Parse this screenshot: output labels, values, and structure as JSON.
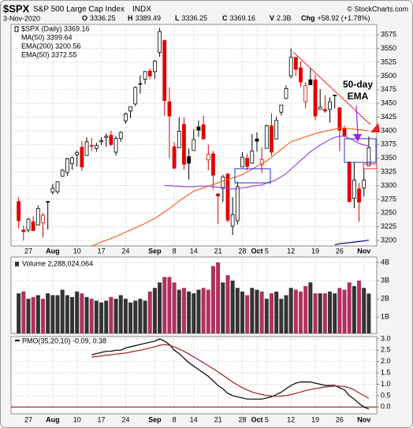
{
  "header": {
    "symbol": "$SPX",
    "name": "S&P 500 Large Cap Index",
    "exchange": "INDX",
    "credit": "© StockCharts.com",
    "date": "3-Nov-2020",
    "stats": [
      {
        "label": "O",
        "value": "3336.25"
      },
      {
        "label": "H",
        "value": "3389.49"
      },
      {
        "label": "L",
        "value": "3336.25"
      },
      {
        "label": "C",
        "value": "3369.16"
      },
      {
        "label": "V",
        "value": "2.3B"
      },
      {
        "label": "Chg",
        "value": "+58.92 (+1.78%)"
      }
    ]
  },
  "chart_data": {
    "type": "candlestick",
    "legend": "$SPX (Daily) 3369.16",
    "up_color": "#000000",
    "down_color": "#e00000",
    "x": [
      "2020-07-23",
      "2020-07-24",
      "2020-07-27",
      "2020-07-28",
      "2020-07-29",
      "2020-07-30",
      "2020-07-31",
      "2020-08-03",
      "2020-08-04",
      "2020-08-05",
      "2020-08-06",
      "2020-08-07",
      "2020-08-10",
      "2020-08-11",
      "2020-08-12",
      "2020-08-13",
      "2020-08-14",
      "2020-08-17",
      "2020-08-18",
      "2020-08-19",
      "2020-08-20",
      "2020-08-21",
      "2020-08-24",
      "2020-08-25",
      "2020-08-26",
      "2020-08-27",
      "2020-08-28",
      "2020-08-31",
      "2020-09-01",
      "2020-09-02",
      "2020-09-03",
      "2020-09-04",
      "2020-09-08",
      "2020-09-09",
      "2020-09-10",
      "2020-09-11",
      "2020-09-14",
      "2020-09-15",
      "2020-09-16",
      "2020-09-17",
      "2020-09-18",
      "2020-09-21",
      "2020-09-22",
      "2020-09-23",
      "2020-09-24",
      "2020-09-25",
      "2020-09-28",
      "2020-09-29",
      "2020-09-30",
      "2020-10-01",
      "2020-10-02",
      "2020-10-05",
      "2020-10-06",
      "2020-10-07",
      "2020-10-08",
      "2020-10-09",
      "2020-10-12",
      "2020-10-13",
      "2020-10-14",
      "2020-10-15",
      "2020-10-16",
      "2020-10-19",
      "2020-10-20",
      "2020-10-21",
      "2020-10-22",
      "2020-10-23",
      "2020-10-26",
      "2020-10-27",
      "2020-10-28",
      "2020-10-29",
      "2020-10-30",
      "2020-11-02",
      "2020-11-03"
    ],
    "xticks": [
      {
        "value": "2020-07-27",
        "label": "27"
      },
      {
        "value": "2020-08-03",
        "label": "Aug"
      },
      {
        "value": "2020-08-10",
        "label": "10"
      },
      {
        "value": "2020-08-17",
        "label": "17"
      },
      {
        "value": "2020-08-24",
        "label": "24"
      },
      {
        "value": "2020-09-01",
        "label": "Sep"
      },
      {
        "value": "2020-09-08",
        "label": "8"
      },
      {
        "value": "2020-09-14",
        "label": "14"
      },
      {
        "value": "2020-09-21",
        "label": "21"
      },
      {
        "value": "2020-09-28",
        "label": "28"
      },
      {
        "value": "2020-10-01",
        "label": "Oct"
      },
      {
        "value": "2020-10-05",
        "label": "5"
      },
      {
        "value": "2020-10-12",
        "label": "12"
      },
      {
        "value": "2020-10-19",
        "label": "19"
      },
      {
        "value": "2020-10-26",
        "label": "26"
      },
      {
        "value": "2020-11-02",
        "label": "Nov"
      }
    ],
    "open": [
      3271,
      3219,
      3219,
      3234,
      3228,
      3232,
      3270,
      3288,
      3289,
      3317,
      3324,
      3340,
      3356,
      3370,
      3355,
      3373,
      3368,
      3380,
      3388,
      3392,
      3361,
      3386,
      3418,
      3436,
      3449,
      3486,
      3494,
      3509,
      3508,
      3543,
      3565,
      3453,
      3371,
      3369,
      3412,
      3353,
      3364,
      3407,
      3411,
      3347,
      3358,
      3285,
      3295,
      3321,
      3226,
      3236,
      3334,
      3350,
      3341,
      3385,
      3338,
      3368,
      3409,
      3385,
      3434,
      3459,
      3500,
      3534,
      3515,
      3453,
      3493,
      3493,
      3439,
      3439,
      3439,
      3464,
      3442,
      3404,
      3343,
      3277,
      3294,
      3296,
      3336.25
    ],
    "high": [
      3279,
      3227,
      3241,
      3244,
      3264,
      3250,
      3272,
      3303,
      3307,
      3330,
      3351,
      3353,
      3364,
      3381,
      3388,
      3387,
      3378,
      3388,
      3395,
      3400,
      3390,
      3399,
      3433,
      3444,
      3481,
      3501,
      3509,
      3514,
      3529,
      3588,
      3565,
      3479,
      3379,
      3425,
      3425,
      3368,
      3403,
      3419,
      3428,
      3375,
      3363,
      3285,
      3320,
      3323,
      3279,
      3307,
      3361,
      3358,
      3394,
      3397,
      3370,
      3411,
      3432,
      3426,
      3447,
      3483,
      3550,
      3534,
      3527,
      3489,
      3515,
      3502,
      3476,
      3465,
      3461,
      3466,
      3442,
      3409,
      3343,
      3342,
      3305,
      3330,
      3389.49
    ],
    "low": [
      3222,
      3200,
      3215,
      3217,
      3228,
      3205,
      3220,
      3284,
      3285,
      3317,
      3318,
      3329,
      3335,
      3327,
      3355,
      3363,
      3362,
      3374,
      3371,
      3372,
      3355,
      3380,
      3413,
      3423,
      3445,
      3468,
      3485,
      3494,
      3495,
      3535,
      3427,
      3350,
      3329,
      3369,
      3329,
      3311,
      3364,
      3389,
      3384,
      3328,
      3293,
      3230,
      3270,
      3233,
      3210,
      3229,
      3334,
      3328,
      3340,
      3362,
      3323,
      3368,
      3354,
      3385,
      3428,
      3458,
      3496,
      3500,
      3480,
      3441,
      3483,
      3419,
      3439,
      3433,
      3415,
      3441,
      3363,
      3388,
      3268,
      3259,
      3234,
      3280,
      3336.25
    ],
    "close": [
      3236,
      3216,
      3239,
      3218,
      3258,
      3246,
      3271,
      3295,
      3307,
      3328,
      3349,
      3351,
      3360,
      3334,
      3380,
      3373,
      3373,
      3382,
      3390,
      3375,
      3386,
      3397,
      3431,
      3444,
      3479,
      3485,
      3508,
      3500,
      3527,
      3581,
      3455,
      3427,
      3332,
      3399,
      3339,
      3341,
      3384,
      3401,
      3385,
      3357,
      3319,
      3281,
      3316,
      3237,
      3247,
      3298,
      3352,
      3335,
      3363,
      3381,
      3348,
      3409,
      3361,
      3419,
      3447,
      3477,
      3534,
      3512,
      3489,
      3483,
      3484,
      3427,
      3443,
      3436,
      3453,
      3465,
      3401,
      3391,
      3271,
      3310,
      3270,
      3310,
      3369.16
    ],
    "ylim": [
      3190,
      3594
    ],
    "yticks": [
      3200,
      3225,
      3250,
      3275,
      3300,
      3325,
      3350,
      3375,
      3400,
      3425,
      3450,
      3475,
      3500,
      3525,
      3550,
      3575
    ],
    "grid": true,
    "series": [
      {
        "name": "MA(50)",
        "legend": "MA(50) 3399.64",
        "color": "#f26522",
        "values": [
          null,
          null,
          null,
          null,
          null,
          null,
          null,
          null,
          null,
          null,
          null,
          null,
          null,
          null,
          null,
          3190,
          3193,
          3197,
          3200,
          3204,
          3207,
          3211,
          3215,
          3219,
          3223,
          3227,
          3231,
          3236,
          3240,
          3246,
          3252,
          3258,
          3265,
          3272,
          3278,
          3284,
          3290,
          3293,
          3296,
          3299,
          3302,
          3305,
          3308,
          3311,
          3314,
          3317,
          3320,
          3325,
          3330,
          3335,
          3340,
          3345,
          3352,
          3359,
          3366,
          3373,
          3380,
          3383,
          3386,
          3389,
          3392,
          3395,
          3397,
          3399,
          3401,
          3403,
          3405,
          3405,
          3404,
          3403,
          3402,
          3401,
          3399.64
        ]
      },
      {
        "name": "EMA(200)",
        "legend": "EMA(200) 3200.56",
        "color": "#000080",
        "values": [
          null,
          null,
          null,
          null,
          null,
          null,
          null,
          null,
          null,
          null,
          null,
          null,
          null,
          null,
          null,
          null,
          null,
          null,
          null,
          null,
          null,
          null,
          null,
          null,
          null,
          null,
          null,
          null,
          null,
          null,
          null,
          null,
          null,
          null,
          null,
          null,
          null,
          null,
          null,
          null,
          null,
          null,
          null,
          null,
          null,
          null,
          null,
          null,
          null,
          null,
          null,
          null,
          null,
          null,
          null,
          null,
          null,
          null,
          null,
          null,
          null,
          null,
          null,
          null,
          null,
          3192,
          3194,
          3195,
          3196,
          3197,
          3198,
          3199,
          3200.56
        ]
      },
      {
        "name": "EMA(50)",
        "legend": "EMA(50) 3372.55",
        "color": "#9b45e0",
        "values": [
          null,
          null,
          null,
          null,
          null,
          null,
          null,
          null,
          null,
          null,
          null,
          null,
          null,
          null,
          null,
          null,
          null,
          null,
          null,
          null,
          null,
          null,
          null,
          null,
          null,
          null,
          null,
          null,
          null,
          null,
          3300,
          3300,
          3299,
          3299,
          3298,
          3298,
          3298,
          3299,
          3299,
          3299,
          3298,
          3297,
          3297,
          3295,
          3294,
          3294,
          3296,
          3297,
          3299,
          3300,
          3301,
          3305,
          3307,
          3311,
          3316,
          3322,
          3330,
          3338,
          3346,
          3354,
          3362,
          3368,
          3374,
          3379,
          3384,
          3388,
          3390,
          3390,
          3386,
          3382,
          3377,
          3374,
          3372.55
        ]
      }
    ],
    "annotation": {
      "lines": [
        "50-day",
        "EMA"
      ],
      "color": "#a020f0"
    },
    "volume": {
      "type": "bar",
      "legend": "Volume 2,288,024,064",
      "up_color": "#333333",
      "down_color": "#b0305f",
      "values": [
        2.3,
        2.4,
        2.0,
        2.1,
        2.2,
        2.0,
        2.3,
        2.2,
        2.2,
        2.5,
        2.2,
        2.1,
        2.4,
        2.3,
        2.1,
        2.0,
        1.9,
        1.8,
        1.9,
        2.1,
        2.0,
        2.2,
        2.0,
        1.8,
        1.9,
        2.0,
        1.9,
        2.4,
        2.6,
        2.9,
        3.2,
        3.2,
        2.9,
        2.5,
        2.6,
        2.4,
        2.3,
        2.5,
        2.6,
        2.5,
        3.8,
        4.0,
        2.9,
        3.3,
        3.0,
        2.6,
        2.4,
        2.2,
        2.6,
        2.5,
        2.4,
        2.0,
        2.3,
        2.4,
        2.0,
        2.2,
        2.6,
        2.5,
        2.4,
        2.7,
        2.9,
        2.3,
        2.3,
        2.3,
        2.4,
        2.3,
        2.6,
        2.5,
        2.9,
        2.7,
        3.0,
        2.6,
        2.288024064
      ],
      "ylim": [
        0.1,
        4.3
      ],
      "yticks": [
        {
          "value": 1,
          "label": "1B"
        },
        {
          "value": 2,
          "label": "2B"
        },
        {
          "value": 3,
          "label": "3B"
        },
        {
          "value": 4,
          "label": "4B"
        }
      ]
    },
    "pmo": {
      "type": "line",
      "legend": "PMO(35,20,10) -0.09, 0.38",
      "zero_color": "#8b0000",
      "ylim": [
        -0.3,
        3.1
      ],
      "yticks": [
        {
          "value": 0,
          "label": "0.0"
        },
        {
          "value": 0.5,
          "label": "0.5"
        },
        {
          "value": 1,
          "label": "1.0"
        },
        {
          "value": 1.5,
          "label": "1.5"
        },
        {
          "value": 2,
          "label": "2.0"
        },
        {
          "value": 2.5,
          "label": "2.5"
        },
        {
          "value": 3,
          "label": "3.0"
        }
      ],
      "series": [
        {
          "name": "PMO",
          "color": "#000000",
          "values": [
            null,
            null,
            null,
            null,
            null,
            null,
            null,
            null,
            null,
            null,
            null,
            null,
            null,
            null,
            null,
            2.3,
            2.35,
            2.4,
            2.45,
            2.45,
            2.5,
            2.5,
            2.6,
            2.65,
            2.7,
            2.75,
            2.8,
            2.85,
            2.9,
            3.0,
            2.9,
            2.75,
            2.5,
            2.35,
            2.15,
            1.95,
            1.8,
            1.65,
            1.5,
            1.35,
            1.15,
            0.95,
            0.8,
            0.6,
            0.5,
            0.45,
            0.4,
            0.35,
            0.35,
            0.35,
            0.35,
            0.4,
            0.45,
            0.55,
            0.65,
            0.8,
            0.95,
            1.05,
            1.1,
            1.1,
            1.1,
            1.05,
            1.0,
            0.95,
            0.95,
            0.95,
            0.85,
            0.75,
            0.5,
            0.35,
            0.15,
            0.0,
            -0.09
          ]
        },
        {
          "name": "Signal",
          "color": "#a0202a",
          "values": [
            null,
            null,
            null,
            null,
            null,
            null,
            null,
            null,
            null,
            null,
            null,
            null,
            null,
            null,
            null,
            2.2,
            2.22,
            2.25,
            2.28,
            2.3,
            2.33,
            2.35,
            2.38,
            2.42,
            2.46,
            2.5,
            2.55,
            2.6,
            2.65,
            2.72,
            2.75,
            2.72,
            2.65,
            2.55,
            2.45,
            2.33,
            2.2,
            2.08,
            1.95,
            1.82,
            1.68,
            1.55,
            1.4,
            1.25,
            1.1,
            0.97,
            0.85,
            0.75,
            0.66,
            0.6,
            0.55,
            0.5,
            0.48,
            0.47,
            0.48,
            0.5,
            0.55,
            0.6,
            0.66,
            0.72,
            0.77,
            0.81,
            0.85,
            0.88,
            0.9,
            0.92,
            0.92,
            0.9,
            0.84,
            0.75,
            0.62,
            0.5,
            0.38
          ]
        }
      ]
    }
  }
}
